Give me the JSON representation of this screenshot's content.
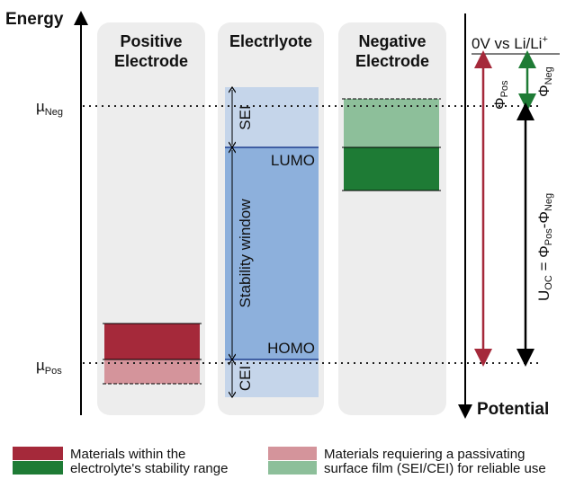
{
  "axes": {
    "energy": "Energy",
    "potential": "Potential"
  },
  "columns": [
    {
      "line1": "Positive",
      "line2": "Electrode"
    },
    {
      "line1": "Electrlyote"
    },
    {
      "line1": "Negative",
      "line2": "Electrode"
    }
  ],
  "electrolyte": {
    "sei": "SEI",
    "window": "Stability window",
    "cei": "CEI",
    "lumo": "LUMO",
    "homo": "HOMO"
  },
  "levels": {
    "neg": {
      "symbol": "µ",
      "sub": "Neg"
    },
    "pos": {
      "symbol": "µ",
      "sub": "Pos"
    }
  },
  "reference": {
    "text": "0V vs Li/Li",
    "sup": "+"
  },
  "potentials": {
    "phi_pos": {
      "symbol": "Φ",
      "sub": "Pos"
    },
    "phi_neg": {
      "symbol": "Φ",
      "sub": "Neg"
    },
    "uoc": {
      "u": "U",
      "u_sub": "OC",
      "eq": " = ",
      "phi1": "Φ",
      "phi1_sub": "Pos",
      "minus": "-",
      "phi2": "Φ",
      "phi2_sub": "Neg"
    }
  },
  "legend": [
    {
      "line1": "Materials within the",
      "line2": "electrolyte's stability range"
    },
    {
      "line1": "Materials requiering a passivating",
      "line2": "surface film (SEI/CEI) for reliable use"
    }
  ]
}
